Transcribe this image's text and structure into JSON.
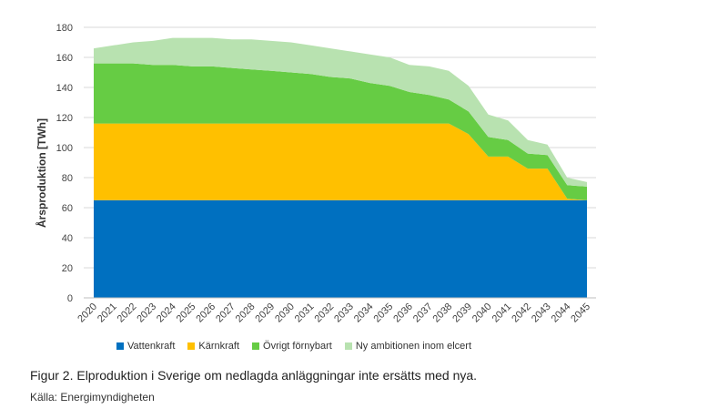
{
  "chart_data": {
    "type": "area",
    "stacked": true,
    "ylabel": "Årsproduktion [TWh]",
    "ylim": [
      0,
      180
    ],
    "yticks": [
      0,
      20,
      40,
      60,
      80,
      100,
      120,
      140,
      160,
      180
    ],
    "grid": true,
    "legend_position": "bottom",
    "categories": [
      "2020",
      "2021",
      "2022",
      "2023",
      "2024",
      "2025",
      "2026",
      "2027",
      "2028",
      "2029",
      "2030",
      "2031",
      "2032",
      "2033",
      "2034",
      "2035",
      "2036",
      "2037",
      "2038",
      "2039",
      "2040",
      "2041",
      "2042",
      "2043",
      "2044",
      "2045"
    ],
    "series": [
      {
        "name": "Vattenkraft",
        "color": "#0070C0",
        "values": [
          65,
          65,
          65,
          65,
          65,
          65,
          65,
          65,
          65,
          65,
          65,
          65,
          65,
          65,
          65,
          65,
          65,
          65,
          65,
          65,
          65,
          65,
          65,
          65,
          65,
          65
        ]
      },
      {
        "name": "Kärnkraft",
        "color": "#FFC000",
        "values": [
          51,
          51,
          51,
          51,
          51,
          51,
          51,
          51,
          51,
          51,
          51,
          51,
          51,
          51,
          51,
          51,
          51,
          51,
          51,
          44,
          29,
          29,
          21,
          21,
          1,
          0
        ]
      },
      {
        "name": "Övrigt förnybart",
        "color": "#66CC44",
        "values": [
          40,
          40,
          40,
          39,
          39,
          38,
          38,
          37,
          36,
          35,
          34,
          33,
          31,
          30,
          27,
          25,
          21,
          19,
          16,
          15,
          13,
          11,
          10,
          9,
          9,
          9
        ]
      },
      {
        "name": "Ny ambitionen inom elcert",
        "color": "#B8E2B0",
        "values": [
          10,
          12,
          14,
          16,
          18,
          19,
          19,
          19,
          20,
          20,
          20,
          19,
          19,
          18,
          19,
          19,
          18,
          19,
          19,
          17,
          15,
          13,
          9,
          7,
          5,
          3
        ]
      }
    ]
  },
  "caption": "Figur 2. Elproduktion i Sverige om nedlagda anläggningar inte ersätts med nya.",
  "source": "Källa: Energimyndigheten"
}
